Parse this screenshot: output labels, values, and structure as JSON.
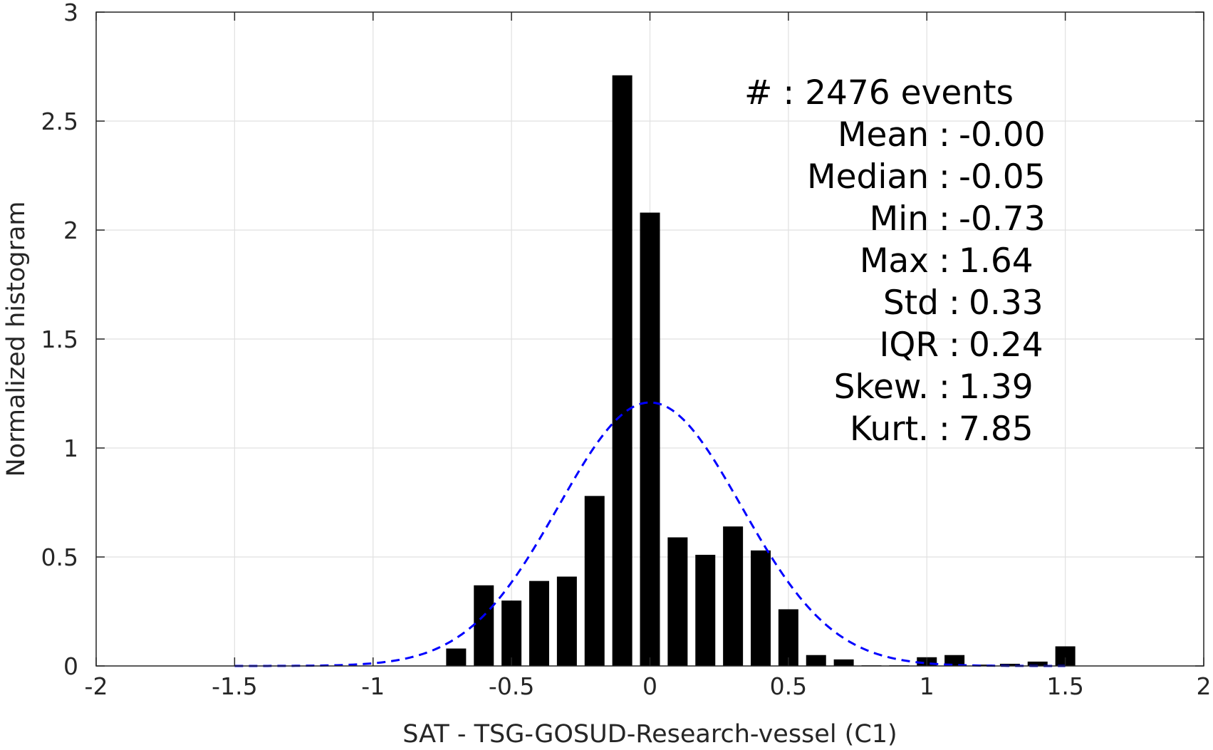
{
  "chart_data": {
    "type": "bar",
    "xlabel": "SAT - TSG-GOSUD-Research-vessel (C1)",
    "ylabel": "Normalized histogram",
    "xlim": [
      -2,
      2
    ],
    "ylim": [
      0,
      3
    ],
    "xticks": [
      "-2",
      "-1.5",
      "-1",
      "-0.5",
      "0",
      "0.5",
      "1",
      "1.5",
      "2"
    ],
    "yticks": [
      "0",
      "0.5",
      "1",
      "1.5",
      "2",
      "2.5",
      "3"
    ],
    "grid": true,
    "bin_width": 0.1,
    "bars": {
      "x": [
        -0.7,
        -0.6,
        -0.5,
        -0.4,
        -0.3,
        -0.2,
        -0.1,
        0.0,
        0.1,
        0.2,
        0.3,
        0.4,
        0.5,
        0.6,
        0.7,
        0.8,
        0.9,
        1.0,
        1.1,
        1.2,
        1.3,
        1.4,
        1.5
      ],
      "values": [
        0.08,
        0.37,
        0.3,
        0.39,
        0.41,
        0.78,
        2.71,
        2.08,
        0.59,
        0.51,
        0.64,
        0.53,
        0.26,
        0.05,
        0.03,
        0.003,
        0.003,
        0.04,
        0.05,
        0.006,
        0.01,
        0.02,
        0.09
      ],
      "color": "#000000"
    },
    "fit_curve": {
      "kind": "normal",
      "mean": 0.0,
      "std": 0.33,
      "x_range": [
        -1.5,
        1.5
      ],
      "color": "#0000ff",
      "style": "dashed"
    },
    "stats": [
      {
        "label": "#  : 2476 events"
      },
      {
        "label": "Mean : -0.00"
      },
      {
        "label": "Median : -0.05"
      },
      {
        "label": "Min : -0.73"
      },
      {
        "label": "Max : 1.64"
      },
      {
        "label": "Std : 0.33"
      },
      {
        "label": "IQR : 0.24"
      },
      {
        "label": "Skew. : 1.39"
      },
      {
        "label": "Kurt. : 7.85"
      }
    ]
  }
}
